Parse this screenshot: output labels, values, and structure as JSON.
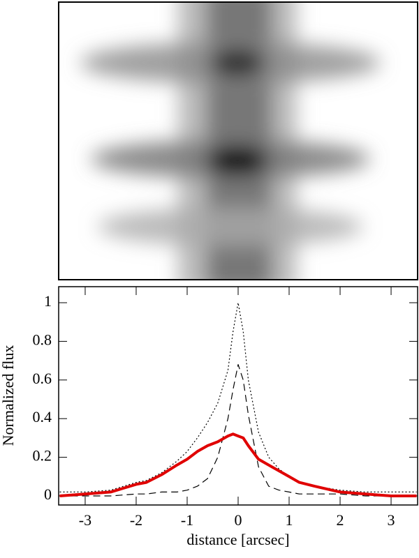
{
  "chart_data": {
    "type": "line",
    "xlabel": "distance [arcsec]",
    "ylabel": "Normalized flux",
    "x": [
      -3.5,
      -3.0,
      -2.5,
      -2.0,
      -1.8,
      -1.5,
      -1.2,
      -1.0,
      -0.8,
      -0.6,
      -0.4,
      -0.2,
      -0.1,
      0,
      0.1,
      0.2,
      0.4,
      0.6,
      0.8,
      1.0,
      1.2,
      1.5,
      2.0,
      2.5,
      3.0,
      3.5
    ],
    "series": [
      {
        "color": "#000000",
        "dash": "dotted",
        "values": [
          0.02,
          0.02,
          0.03,
          0.07,
          0.08,
          0.12,
          0.18,
          0.23,
          0.3,
          0.38,
          0.48,
          0.65,
          0.85,
          1.0,
          0.85,
          0.6,
          0.33,
          0.2,
          0.14,
          0.1,
          0.07,
          0.05,
          0.03,
          0.02,
          0.02,
          0.02
        ]
      },
      {
        "color": "#000000",
        "dash": "dashed",
        "values": [
          0.0,
          0.0,
          0.0,
          0.01,
          0.01,
          0.02,
          0.02,
          0.03,
          0.05,
          0.09,
          0.2,
          0.4,
          0.55,
          0.68,
          0.6,
          0.42,
          0.15,
          0.05,
          0.03,
          0.02,
          0.01,
          0.01,
          0.01,
          0.0,
          0.0,
          0.0
        ]
      },
      {
        "color": "#e00000",
        "dash": "solid",
        "values": [
          0.0,
          0.01,
          0.02,
          0.06,
          0.07,
          0.11,
          0.16,
          0.19,
          0.23,
          0.26,
          0.28,
          0.31,
          0.32,
          0.31,
          0.3,
          0.26,
          0.19,
          0.16,
          0.13,
          0.1,
          0.07,
          0.05,
          0.02,
          0.01,
          0.0,
          0.0
        ]
      }
    ],
    "xlim": [
      -3.52,
      3.52
    ],
    "ylim": [
      -0.047,
      1.083
    ],
    "xticks": [
      -3,
      -2,
      -1,
      0,
      1,
      2,
      3
    ],
    "yticks": [
      0,
      0.2,
      0.4,
      0.6,
      0.8,
      1
    ]
  }
}
